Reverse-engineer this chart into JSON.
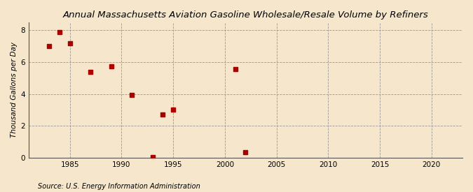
{
  "title": "Annual Massachusetts Aviation Gasoline Wholesale/Resale Volume by Refiners",
  "ylabel": "Thousand Gallons per Day",
  "source": "Source: U.S. Energy Information Administration",
  "background_color": "#f5e6cc",
  "plot_background_color": "#f5e6cc",
  "marker_color": "#aa0000",
  "marker_size": 18,
  "x_data": [
    1983,
    1984,
    1985,
    1987,
    1989,
    1991,
    1993,
    1994,
    1995,
    2001,
    2002
  ],
  "y_data": [
    7.0,
    7.9,
    7.2,
    5.4,
    5.75,
    3.95,
    0.05,
    2.7,
    3.0,
    5.55,
    0.35
  ],
  "xlim": [
    1981,
    2023
  ],
  "ylim": [
    0,
    8.5
  ],
  "yticks": [
    0,
    2,
    4,
    6,
    8
  ],
  "xticks": [
    1985,
    1990,
    1995,
    2000,
    2005,
    2010,
    2015,
    2020
  ],
  "grid_color": "#999999",
  "grid_linestyle": "--",
  "title_fontsize": 9.5,
  "label_fontsize": 7.5,
  "tick_fontsize": 7.5,
  "source_fontsize": 7.0
}
